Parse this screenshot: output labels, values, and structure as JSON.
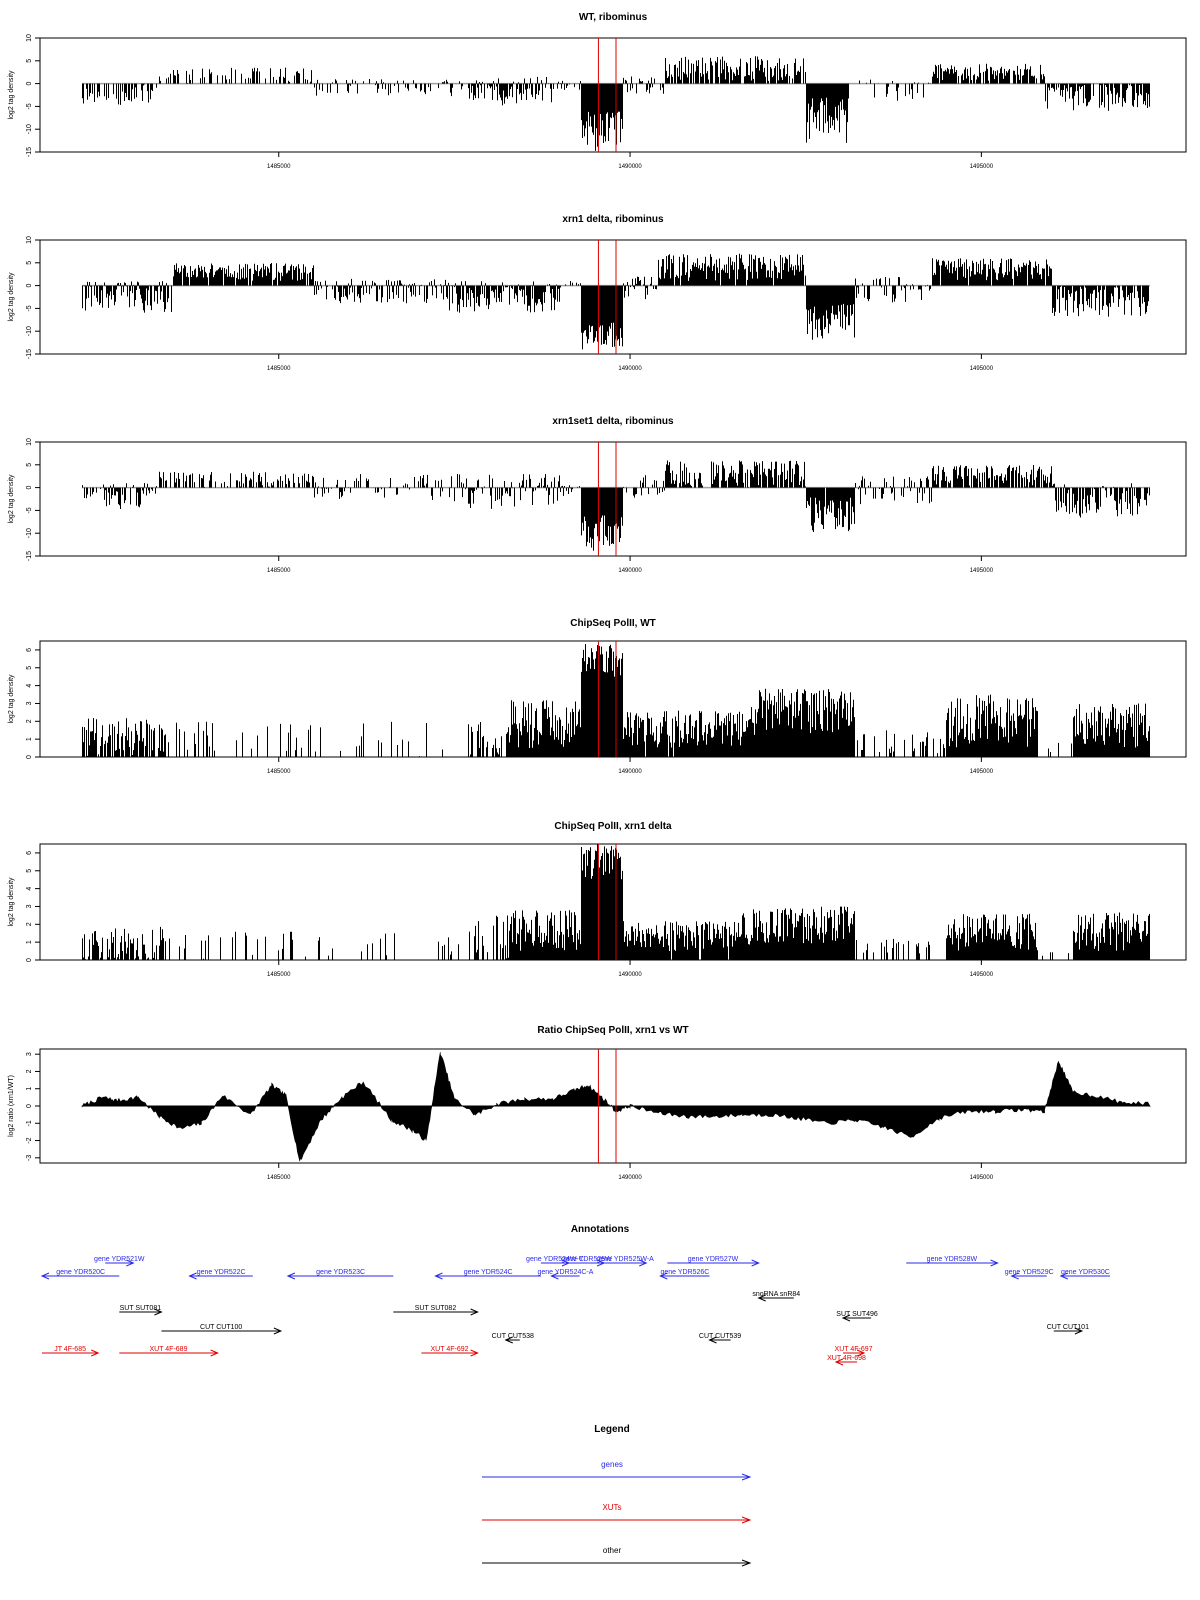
{
  "colors": {
    "data": "#000000",
    "baseline": "#a0a0a0",
    "marker": "#e00000",
    "gene": "#2a2ae8",
    "xut": "#e00000",
    "other": "#000000"
  },
  "chart_data": [
    {
      "type": "bar",
      "title": "WT, ribominus",
      "ylabel": "log2 tag density",
      "xlim": [
        1482200,
        1497400
      ],
      "ylim": [
        -15,
        10
      ],
      "yticks": [
        -15,
        -10,
        -5,
        0,
        5,
        10
      ],
      "xticks": [
        1485000,
        1490000,
        1495000
      ],
      "markers_x": [
        1489550,
        1489800
      ],
      "baseline": 0,
      "segments": [
        {
          "x": [
            1482200,
            1483300
          ],
          "min": -5,
          "max": 0,
          "density": 0.55,
          "seed": 11
        },
        {
          "x": [
            1483300,
            1485500
          ],
          "min": 0,
          "max": 3.5,
          "density": 0.35,
          "seed": 12
        },
        {
          "x": [
            1485500,
            1487700
          ],
          "min": -3,
          "max": 1,
          "density": 0.35,
          "seed": 13
        },
        {
          "x": [
            1487700,
            1489000
          ],
          "min": -5,
          "max": 1.5,
          "density": 0.7,
          "seed": 14
        },
        {
          "x": [
            1489000,
            1489300
          ],
          "min": -2,
          "max": 1,
          "density": 0.5,
          "seed": 15
        },
        {
          "x": [
            1489300,
            1489900
          ],
          "min": -15,
          "max": -6,
          "density": 1.0,
          "seed": 16
        },
        {
          "x": [
            1489900,
            1490500
          ],
          "min": -3,
          "max": 2,
          "density": 0.45,
          "seed": 17
        },
        {
          "x": [
            1490500,
            1492500
          ],
          "min": 0.5,
          "max": 6,
          "density": 0.8,
          "seed": 18
        },
        {
          "x": [
            1492500,
            1493100
          ],
          "min": -13,
          "max": -3,
          "density": 1.0,
          "seed": 19
        },
        {
          "x": [
            1493100,
            1494300
          ],
          "min": -4,
          "max": 1,
          "density": 0.35,
          "seed": 20
        },
        {
          "x": [
            1494300,
            1495900
          ],
          "min": 0.5,
          "max": 4.5,
          "density": 0.8,
          "seed": 21
        },
        {
          "x": [
            1495900,
            1497400
          ],
          "min": -6,
          "max": 0,
          "density": 0.8,
          "seed": 22
        }
      ]
    },
    {
      "type": "bar",
      "title": "xrn1 delta, ribominus",
      "ylabel": "log2 tag density",
      "xlim": [
        1482200,
        1497400
      ],
      "ylim": [
        -15,
        10
      ],
      "yticks": [
        -15,
        -10,
        -5,
        0,
        5,
        10
      ],
      "xticks": [
        1485000,
        1490000,
        1495000
      ],
      "markers_x": [
        1489550,
        1489800
      ],
      "baseline": 0,
      "segments": [
        {
          "x": [
            1482200,
            1483500
          ],
          "min": -6,
          "max": 1,
          "density": 0.9,
          "seed": 31
        },
        {
          "x": [
            1483500,
            1485500
          ],
          "min": 1,
          "max": 5,
          "density": 0.9,
          "seed": 32
        },
        {
          "x": [
            1485500,
            1487400
          ],
          "min": -4,
          "max": 1.5,
          "density": 0.7,
          "seed": 33
        },
        {
          "x": [
            1487400,
            1489000
          ],
          "min": -6,
          "max": 1,
          "density": 0.9,
          "seed": 34
        },
        {
          "x": [
            1489000,
            1489300
          ],
          "min": -2,
          "max": 1,
          "density": 0.5,
          "seed": 35
        },
        {
          "x": [
            1489300,
            1489900
          ],
          "min": -14,
          "max": -8,
          "density": 1.0,
          "seed": 36
        },
        {
          "x": [
            1489900,
            1490400
          ],
          "min": -3,
          "max": 2,
          "density": 0.6,
          "seed": 37
        },
        {
          "x": [
            1490400,
            1492500
          ],
          "min": 1,
          "max": 7,
          "density": 0.95,
          "seed": 38
        },
        {
          "x": [
            1492500,
            1493200
          ],
          "min": -12,
          "max": -4,
          "density": 1.0,
          "seed": 39
        },
        {
          "x": [
            1493200,
            1494300
          ],
          "min": -4,
          "max": 2,
          "density": 0.6,
          "seed": 40
        },
        {
          "x": [
            1494300,
            1496000
          ],
          "min": 1,
          "max": 6,
          "density": 0.95,
          "seed": 41
        },
        {
          "x": [
            1496000,
            1497400
          ],
          "min": -7,
          "max": 0,
          "density": 0.9,
          "seed": 42
        }
      ]
    },
    {
      "type": "bar",
      "title": "xrn1set1 delta, ribominus",
      "ylabel": "log2 tag density",
      "xlim": [
        1482200,
        1497400
      ],
      "ylim": [
        -15,
        10
      ],
      "yticks": [
        -15,
        -10,
        -5,
        0,
        5,
        10
      ],
      "xticks": [
        1485000,
        1490000,
        1495000
      ],
      "markers_x": [
        1489550,
        1489800
      ],
      "baseline": 0,
      "segments": [
        {
          "x": [
            1482200,
            1483300
          ],
          "min": -5,
          "max": 1,
          "density": 0.6,
          "seed": 51
        },
        {
          "x": [
            1483300,
            1485500
          ],
          "min": 0,
          "max": 3.5,
          "density": 0.45,
          "seed": 52
        },
        {
          "x": [
            1485500,
            1487500
          ],
          "min": -3,
          "max": 3,
          "density": 0.45,
          "seed": 53
        },
        {
          "x": [
            1487500,
            1489000
          ],
          "min": -5,
          "max": 3,
          "density": 0.6,
          "seed": 54
        },
        {
          "x": [
            1489000,
            1489300
          ],
          "min": -2,
          "max": 1,
          "density": 0.5,
          "seed": 55
        },
        {
          "x": [
            1489300,
            1489900
          ],
          "min": -14,
          "max": -6,
          "density": 1.0,
          "seed": 56
        },
        {
          "x": [
            1489900,
            1490500
          ],
          "min": -3,
          "max": 3,
          "density": 0.5,
          "seed": 57
        },
        {
          "x": [
            1490500,
            1492500
          ],
          "min": 0,
          "max": 6,
          "density": 0.75,
          "seed": 58
        },
        {
          "x": [
            1492500,
            1493200
          ],
          "min": -10,
          "max": -2,
          "density": 0.95,
          "seed": 59
        },
        {
          "x": [
            1493200,
            1494300
          ],
          "min": -4,
          "max": 2.5,
          "density": 0.5,
          "seed": 60
        },
        {
          "x": [
            1494300,
            1496000
          ],
          "min": 0,
          "max": 5,
          "density": 0.8,
          "seed": 61
        },
        {
          "x": [
            1496000,
            1497400
          ],
          "min": -7,
          "max": 1,
          "density": 0.75,
          "seed": 62
        }
      ]
    },
    {
      "type": "bar",
      "title": "ChipSeq PolII, WT",
      "ylabel": "log2 tag density",
      "xlim": [
        1482200,
        1497400
      ],
      "ylim": [
        0,
        6.5
      ],
      "yticks": [
        0,
        1,
        2,
        3,
        4,
        5,
        6
      ],
      "xticks": [
        1485000,
        1490000,
        1495000
      ],
      "markers_x": [
        1489550,
        1489800
      ],
      "baseline": null,
      "segments": [
        {
          "x": [
            1482200,
            1483400
          ],
          "min": 0,
          "max": 2.2,
          "density": 0.75,
          "seed": 71
        },
        {
          "x": [
            1483400,
            1487700
          ],
          "min": 0,
          "max": 2.0,
          "density": 0.12,
          "seed": 72
        },
        {
          "x": [
            1487700,
            1488300
          ],
          "min": 0,
          "max": 2.0,
          "density": 0.6,
          "seed": 73
        },
        {
          "x": [
            1488300,
            1489300
          ],
          "min": 0.5,
          "max": 3.2,
          "density": 1.0,
          "seed": 74
        },
        {
          "x": [
            1489300,
            1489900
          ],
          "min": 4.5,
          "max": 6.5,
          "density": 1.0,
          "seed": 75
        },
        {
          "x": [
            1489900,
            1491700
          ],
          "min": 0.5,
          "max": 2.6,
          "density": 0.95,
          "seed": 76
        },
        {
          "x": [
            1491700,
            1493200
          ],
          "min": 1.2,
          "max": 3.9,
          "density": 1.0,
          "seed": 77
        },
        {
          "x": [
            1493200,
            1494500
          ],
          "min": 0,
          "max": 1.5,
          "density": 0.25,
          "seed": 78
        },
        {
          "x": [
            1494500,
            1495800
          ],
          "min": 0.5,
          "max": 3.5,
          "density": 1.0,
          "seed": 79
        },
        {
          "x": [
            1495800,
            1496300
          ],
          "min": 0,
          "max": 0.8,
          "density": 0.15,
          "seed": 80
        },
        {
          "x": [
            1496300,
            1497400
          ],
          "min": 0.5,
          "max": 3.0,
          "density": 1.0,
          "seed": 81
        }
      ]
    },
    {
      "type": "bar",
      "title": "ChipSeq PolII, xrn1 delta",
      "ylabel": "log2 tag density",
      "xlim": [
        1482200,
        1497400
      ],
      "ylim": [
        0,
        6.5
      ],
      "yticks": [
        0,
        1,
        2,
        3,
        4,
        5,
        6
      ],
      "xticks": [
        1485000,
        1490000,
        1495000
      ],
      "markers_x": [
        1489550,
        1489800
      ],
      "baseline": null,
      "segments": [
        {
          "x": [
            1482200,
            1483400
          ],
          "min": 0,
          "max": 2.0,
          "density": 0.7,
          "seed": 91
        },
        {
          "x": [
            1483400,
            1487800
          ],
          "min": 0,
          "max": 1.6,
          "density": 0.12,
          "seed": 92
        },
        {
          "x": [
            1487800,
            1488300
          ],
          "min": 0,
          "max": 2.5,
          "density": 0.6,
          "seed": 93
        },
        {
          "x": [
            1488300,
            1489300
          ],
          "min": 0.5,
          "max": 2.8,
          "density": 1.0,
          "seed": 94
        },
        {
          "x": [
            1489300,
            1489900
          ],
          "min": 4.5,
          "max": 6.5,
          "density": 1.0,
          "seed": 95
        },
        {
          "x": [
            1489900,
            1491500
          ],
          "min": 0.5,
          "max": 2.2,
          "density": 0.95,
          "seed": 96
        },
        {
          "x": [
            1491500,
            1493200
          ],
          "min": 0.8,
          "max": 3.0,
          "density": 1.0,
          "seed": 97
        },
        {
          "x": [
            1493200,
            1494500
          ],
          "min": 0,
          "max": 1.2,
          "density": 0.25,
          "seed": 98
        },
        {
          "x": [
            1494500,
            1495800
          ],
          "min": 0.5,
          "max": 2.6,
          "density": 1.0,
          "seed": 99
        },
        {
          "x": [
            1495800,
            1496300
          ],
          "min": 0,
          "max": 0.5,
          "density": 0.1,
          "seed": 100
        },
        {
          "x": [
            1496300,
            1497400
          ],
          "min": 0.5,
          "max": 2.7,
          "density": 1.0,
          "seed": 101
        }
      ]
    },
    {
      "type": "area",
      "title": "Ratio ChipSeq PolII, xrn1 vs WT",
      "ylabel": "log2 ratio (xrn1/WT)",
      "xlim": [
        1482200,
        1497400
      ],
      "ylim": [
        -3.3,
        3.3
      ],
      "yticks": [
        -3,
        -2,
        -1,
        0,
        1,
        2,
        3
      ],
      "xticks": [
        1485000,
        1490000,
        1495000
      ],
      "markers_x": [
        1489550,
        1489800
      ],
      "x": [
        1482200,
        1482500,
        1482700,
        1483000,
        1483300,
        1483600,
        1483900,
        1484200,
        1484600,
        1484900,
        1485100,
        1485300,
        1485600,
        1485900,
        1486200,
        1486600,
        1486900,
        1487100,
        1487300,
        1487500,
        1487800,
        1488100,
        1488500,
        1488900,
        1489200,
        1489400,
        1489600,
        1489800,
        1490000,
        1490400,
        1490800,
        1491200,
        1491600,
        1492000,
        1492400,
        1492800,
        1493200,
        1493600,
        1494000,
        1494400,
        1494800,
        1495200,
        1495600,
        1495900,
        1496100,
        1496300,
        1496600,
        1497000,
        1497400
      ],
      "y": [
        0,
        0.5,
        0.3,
        0.5,
        -0.6,
        -1.3,
        -1.0,
        0.6,
        -0.5,
        1.2,
        0.6,
        -3.2,
        -0.8,
        0.5,
        1.4,
        -0.8,
        -1.4,
        -2.0,
        3.1,
        0.4,
        -0.5,
        0.1,
        0.4,
        0.4,
        0.9,
        1.2,
        0.5,
        -0.3,
        0,
        -0.4,
        -0.6,
        -0.6,
        -0.5,
        -0.5,
        -0.7,
        -1.0,
        -0.8,
        -1.2,
        -1.8,
        -0.7,
        -0.3,
        -0.3,
        -0.2,
        -0.3,
        2.6,
        0.8,
        0.6,
        0.2,
        0.1
      ]
    }
  ],
  "annotations": {
    "title": "Annotations",
    "xlim": [
      1482200,
      1497400
    ],
    "features": [
      {
        "label": "gene YDR520C",
        "x1": 1482200,
        "x2": 1483300,
        "dir": -1,
        "color": "gene",
        "row": 2
      },
      {
        "label": "gene YDR521W",
        "x1": 1483100,
        "x2": 1483500,
        "dir": 1,
        "color": "gene",
        "row": 1
      },
      {
        "label": "gene YDR522C",
        "x1": 1484300,
        "x2": 1485200,
        "dir": -1,
        "color": "gene",
        "row": 2
      },
      {
        "label": "gene YDR523C",
        "x1": 1485700,
        "x2": 1487200,
        "dir": -1,
        "color": "gene",
        "row": 2
      },
      {
        "label": "gene YDR524C",
        "x1": 1487800,
        "x2": 1489300,
        "dir": -1,
        "color": "gene",
        "row": 2
      },
      {
        "label": "gene YDR524W-C",
        "x1": 1489300,
        "x2": 1489700,
        "dir": 1,
        "color": "gene",
        "row": 1
      },
      {
        "label": "gene YDR525W",
        "x1": 1489700,
        "x2": 1490200,
        "dir": 1,
        "color": "gene",
        "row": 1
      },
      {
        "label": "gene YDR525W-A",
        "x1": 1490200,
        "x2": 1490800,
        "dir": 1,
        "color": "gene",
        "row": 1
      },
      {
        "label": "gene YDR524C-A",
        "x1": 1489450,
        "x2": 1489850,
        "dir": -1,
        "color": "gene",
        "row": 2
      },
      {
        "label": "gene YDR526C",
        "x1": 1491000,
        "x2": 1491700,
        "dir": -1,
        "color": "gene",
        "row": 2
      },
      {
        "label": "gene YDR527W",
        "x1": 1491100,
        "x2": 1492400,
        "dir": 1,
        "color": "gene",
        "row": 1
      },
      {
        "label": "gene YDR528W",
        "x1": 1494500,
        "x2": 1495800,
        "dir": 1,
        "color": "gene",
        "row": 1
      },
      {
        "label": "gene YDR529C",
        "x1": 1496000,
        "x2": 1496500,
        "dir": -1,
        "color": "gene",
        "row": 2
      },
      {
        "label": "gene YDR530C",
        "x1": 1496700,
        "x2": 1497400,
        "dir": -1,
        "color": "gene",
        "row": 2
      },
      {
        "label": "SUT SUT081",
        "x1": 1483300,
        "x2": 1483900,
        "dir": 1,
        "color": "other",
        "row": 4
      },
      {
        "label": "SUT SUT082",
        "x1": 1487200,
        "x2": 1488400,
        "dir": 1,
        "color": "other",
        "row": 4
      },
      {
        "label": "snoRNA snR84",
        "x1": 1492400,
        "x2": 1492900,
        "dir": -1,
        "color": "other",
        "row": 3
      },
      {
        "label": "SUT SUT496",
        "x1": 1493600,
        "x2": 1494000,
        "dir": -1,
        "color": "other",
        "row": 5
      },
      {
        "label": "CUT CUT100",
        "x1": 1483900,
        "x2": 1485600,
        "dir": 1,
        "color": "other",
        "row": 6
      },
      {
        "label": "CUT CUT538",
        "x1": 1488800,
        "x2": 1489000,
        "dir": -1,
        "color": "other",
        "row": 7
      },
      {
        "label": "CUT CUT539",
        "x1": 1491700,
        "x2": 1492000,
        "dir": -1,
        "color": "other",
        "row": 7
      },
      {
        "label": "CUT CUT101",
        "x1": 1496600,
        "x2": 1497000,
        "dir": 1,
        "color": "other",
        "row": 6
      },
      {
        "label": "JT 4F-685",
        "x1": 1482200,
        "x2": 1483000,
        "dir": 1,
        "color": "xut",
        "row": 8
      },
      {
        "label": "XUT 4F-689",
        "x1": 1483300,
        "x2": 1484700,
        "dir": 1,
        "color": "xut",
        "row": 8
      },
      {
        "label": "XUT 4F-692",
        "x1": 1487600,
        "x2": 1488400,
        "dir": 1,
        "color": "xut",
        "row": 8
      },
      {
        "label": "XUT 4F-697",
        "x1": 1493600,
        "x2": 1493900,
        "dir": 1,
        "color": "xut",
        "row": 8
      },
      {
        "label": "XUT 4R-698",
        "x1": 1493500,
        "x2": 1493800,
        "dir": -1,
        "color": "xut",
        "row": 9
      }
    ]
  },
  "legend": {
    "title": "Legend",
    "items": [
      {
        "label": "genes",
        "color": "gene"
      },
      {
        "label": "XUTs",
        "color": "xut"
      },
      {
        "label": "other",
        "color": "other"
      }
    ]
  }
}
